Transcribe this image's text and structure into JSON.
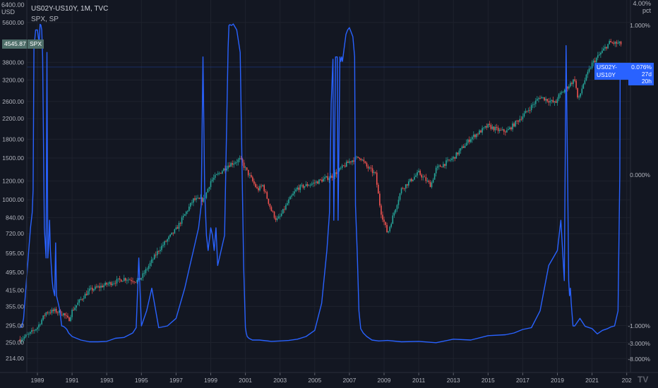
{
  "header": {
    "line1": "US02Y-US10Y, 1M, TVC",
    "line2": "SPX, SP",
    "corner_left_top": "6400.00",
    "corner_left_unit": "USD",
    "corner_right_top": "4.00%",
    "corner_right_unit": "pct"
  },
  "tags": {
    "spx_value": "4545.87",
    "spx_name": "SPX",
    "yc_name": "US02Y-US10Y",
    "yc_value": "0.076%",
    "yc_countdown": "27d 20h"
  },
  "brand": "TV",
  "colors": {
    "background": "#131722",
    "spread_line": "#2962ff",
    "candle_up": "#26a69a",
    "candle_down": "#ef5350",
    "grid": "#1e222d"
  },
  "chart_data": [
    {
      "type": "candlestick",
      "name": "SPX",
      "scale": "log",
      "ylim": [
        190,
        6400
      ],
      "ytick_labels": [
        "5600.00",
        "3800.00",
        "3200.00",
        "2600.00",
        "2200.00",
        "1800.00",
        "1500.00",
        "1200.00",
        "1000.00",
        "840.00",
        "720.00",
        "595.00",
        "495.00",
        "415.00",
        "355.00",
        "295.00",
        "250.00",
        "214.00"
      ],
      "xlim": [
        1988.0,
        2022.9
      ],
      "xtick_labels": [
        "1989",
        "1991",
        "1993",
        "1995",
        "1997",
        "1999",
        "2001",
        "2003",
        "2005",
        "2007",
        "2009",
        "2011",
        "2013",
        "2015",
        "2017",
        "2019",
        "2021",
        "202"
      ],
      "anchors": [
        [
          1988.0,
          258
        ],
        [
          1988.5,
          270
        ],
        [
          1989.0,
          290
        ],
        [
          1989.5,
          335
        ],
        [
          1990.0,
          340
        ],
        [
          1990.5,
          330
        ],
        [
          1990.8,
          310
        ],
        [
          1991.0,
          340
        ],
        [
          1991.5,
          380
        ],
        [
          1992.0,
          415
        ],
        [
          1993.0,
          440
        ],
        [
          1994.0,
          465
        ],
        [
          1994.8,
          455
        ],
        [
          1995.0,
          470
        ],
        [
          1996.0,
          615
        ],
        [
          1997.0,
          750
        ],
        [
          1998.0,
          1000
        ],
        [
          1998.6,
          1000
        ],
        [
          1999.0,
          1200
        ],
        [
          2000.0,
          1400
        ],
        [
          2000.7,
          1480
        ],
        [
          2001.0,
          1350
        ],
        [
          2001.7,
          1100
        ],
        [
          2002.0,
          1150
        ],
        [
          2002.5,
          900
        ],
        [
          2002.8,
          820
        ],
        [
          2003.0,
          850
        ],
        [
          2003.5,
          990
        ],
        [
          2004.0,
          1120
        ],
        [
          2005.0,
          1180
        ],
        [
          2006.0,
          1260
        ],
        [
          2007.0,
          1450
        ],
        [
          2007.6,
          1520
        ],
        [
          2008.0,
          1380
        ],
        [
          2008.5,
          1280
        ],
        [
          2008.8,
          900
        ],
        [
          2009.2,
          720
        ],
        [
          2010.0,
          1110
        ],
        [
          2011.0,
          1300
        ],
        [
          2011.7,
          1150
        ],
        [
          2012.0,
          1350
        ],
        [
          2013.0,
          1500
        ],
        [
          2014.0,
          1820
        ],
        [
          2015.0,
          2050
        ],
        [
          2015.7,
          1950
        ],
        [
          2016.1,
          1950
        ],
        [
          2017.0,
          2260
        ],
        [
          2018.0,
          2720
        ],
        [
          2018.9,
          2550
        ],
        [
          2019.0,
          2700
        ],
        [
          2020.0,
          3230
        ],
        [
          2020.2,
          2600
        ],
        [
          2020.5,
          3100
        ],
        [
          2021.0,
          3750
        ],
        [
          2022.0,
          4600
        ],
        [
          2022.7,
          4545.87
        ]
      ]
    },
    {
      "type": "line",
      "name": "US02Y-US10Y",
      "scale": "inverted-log",
      "yticks": [
        1.0,
        0.0,
        -1.0,
        -3.0,
        -8.0
      ],
      "ytick_labels": [
        "1.000%",
        "0.000%",
        "-1.000%",
        "-3.000%",
        "-8.000%"
      ],
      "last_value": 0.076,
      "x": [
        1988.0,
        1988.1,
        1988.2,
        1988.3,
        1988.4,
        1988.5,
        1988.6,
        1988.7,
        1988.75,
        1988.8,
        1988.9,
        1989.0,
        1989.1,
        1989.15,
        1989.2,
        1989.25,
        1989.3,
        1989.4,
        1989.5,
        1989.55,
        1989.6,
        1989.65,
        1989.7,
        1989.75,
        1989.8,
        1989.85,
        1989.9,
        1990.0,
        1990.05,
        1990.1,
        1990.2,
        1990.3,
        1990.35,
        1990.4,
        1990.5,
        1990.6,
        1990.7,
        1990.8,
        1991.0,
        1991.5,
        1992.0,
        1992.5,
        1993.0,
        1993.5,
        1994.0,
        1994.5,
        1994.7,
        1994.85,
        1995.0,
        1995.3,
        1995.6,
        1996.0,
        1996.5,
        1997.0,
        1997.5,
        1997.8,
        1998.0,
        1998.3,
        1998.45,
        1998.55,
        1998.65,
        1998.75,
        1998.85,
        1999.0,
        1999.1,
        1999.2,
        1999.3,
        1999.4,
        1999.6,
        1999.8,
        2000.0,
        2000.05,
        2000.1,
        2000.2,
        2000.3,
        2000.5,
        2000.7,
        2000.9,
        2001.0,
        2001.05,
        2001.1,
        2001.2,
        2001.4,
        2001.8,
        2002.5,
        2003.0,
        2003.5,
        2004.0,
        2004.5,
        2005.0,
        2005.4,
        2005.7,
        2005.85,
        2005.95,
        2006.05,
        2006.1,
        2006.2,
        2006.3,
        2006.35,
        2006.45,
        2006.5,
        2006.55,
        2006.6,
        2006.7,
        2006.8,
        2006.9,
        2007.0,
        2007.1,
        2007.2,
        2007.3,
        2007.35,
        2007.45,
        2007.55,
        2007.65,
        2007.8,
        2008.0,
        2008.3,
        2008.7,
        2009.2,
        2010.0,
        2011.0,
        2012.0,
        2013.0,
        2014.0,
        2015.0,
        2016.0,
        2016.5,
        2017.0,
        2017.5,
        2018.0,
        2018.5,
        2019.0,
        2019.2,
        2019.4,
        2019.5,
        2019.6,
        2019.65,
        2019.7,
        2019.75,
        2019.8,
        2019.9,
        2020.0,
        2020.3,
        2020.6,
        2021.0,
        2021.3,
        2021.6,
        2021.9,
        2022.1,
        2022.3,
        2022.5,
        2022.6,
        2022.62
      ],
      "y": [
        -1.2,
        -1.1,
        -0.95,
        -0.8,
        -0.65,
        -0.5,
        -0.35,
        -0.25,
        -0.1,
        0.5,
        0.9,
        0.9,
        0.6,
        1.08,
        1.03,
        0.9,
        0.3,
        -0.35,
        -0.55,
        0.4,
        -0.55,
        -0.45,
        -0.3,
        -0.5,
        -0.6,
        -0.7,
        -0.75,
        -0.8,
        -0.45,
        -0.8,
        -0.85,
        -0.9,
        -0.95,
        -1.0,
        -1.05,
        -1.2,
        -1.4,
        -1.8,
        -2.2,
        -2.6,
        -2.8,
        -2.8,
        -2.75,
        -2.4,
        -2.3,
        -1.8,
        -1.2,
        -0.55,
        -1.0,
        -0.9,
        -0.75,
        -1.2,
        -1.0,
        -0.95,
        -0.75,
        -0.6,
        -0.5,
        -0.35,
        -0.2,
        0.3,
        -0.1,
        -0.4,
        -0.5,
        -0.35,
        -0.4,
        -0.5,
        -0.35,
        -0.6,
        -0.5,
        -0.4,
        0.5,
        1.0,
        1.05,
        1.0,
        1.1,
        0.9,
        0.4,
        -0.6,
        -1.2,
        -1.8,
        -2.2,
        -2.4,
        -2.6,
        -2.6,
        -2.75,
        -2.7,
        -2.65,
        -2.5,
        -2.2,
        -1.5,
        -0.85,
        -0.5,
        -0.25,
        0.05,
        0.25,
        -0.3,
        0.3,
        0.3,
        -0.3,
        0.3,
        0.2,
        0.3,
        0.2,
        0.5,
        0.8,
        0.9,
        0.95,
        0.85,
        0.75,
        0.3,
        -0.2,
        -0.5,
        -0.9,
        -1.3,
        -1.8,
        -2.2,
        -2.6,
        -2.7,
        -2.65,
        -2.8,
        -2.75,
        -2.9,
        -2.5,
        -2.6,
        -2.1,
        -2.0,
        -1.8,
        -1.4,
        -1.2,
        -0.9,
        -0.6,
        -0.5,
        -0.3,
        -0.7,
        0.55,
        -0.1,
        -0.7,
        -0.8,
        -0.75,
        -0.85,
        -1.0,
        -1.0,
        -0.95,
        -1.05,
        -1.3,
        -1.9,
        -1.5,
        -1.3,
        -1.1,
        -1.0,
        -0.9,
        0.0,
        0.076
      ]
    }
  ]
}
